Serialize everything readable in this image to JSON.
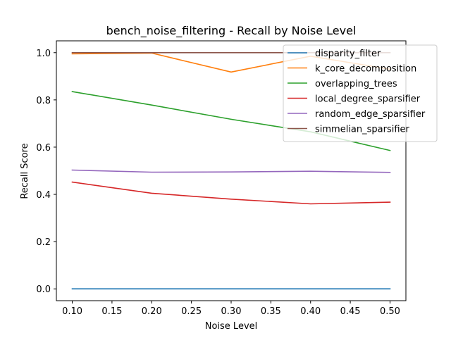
{
  "chart_data": {
    "type": "line",
    "title": "bench_noise_filtering - Recall by Noise Level",
    "xlabel": "Noise Level",
    "ylabel": "Recall Score",
    "x": [
      0.1,
      0.2,
      0.3,
      0.4,
      0.5
    ],
    "xlim": [
      0.08,
      0.52
    ],
    "ylim": [
      -0.05,
      1.05
    ],
    "xticks": [
      0.1,
      0.15,
      0.2,
      0.25,
      0.3,
      0.35,
      0.4,
      0.45,
      0.5
    ],
    "xtick_labels": [
      "0.10",
      "0.15",
      "0.20",
      "0.25",
      "0.30",
      "0.35",
      "0.40",
      "0.45",
      "0.50"
    ],
    "yticks": [
      0.0,
      0.2,
      0.4,
      0.6,
      0.8,
      1.0
    ],
    "ytick_labels": [
      "0.0",
      "0.2",
      "0.4",
      "0.6",
      "0.8",
      "1.0"
    ],
    "grid": false,
    "legend_position": "top-right",
    "series": [
      {
        "name": "disparity_filter",
        "color": "#1f77b4",
        "values": [
          0.0,
          0.0,
          0.0,
          0.0,
          0.0
        ]
      },
      {
        "name": "k_core_decomposition",
        "color": "#ff7f0e",
        "values": [
          0.995,
          0.998,
          0.918,
          0.985,
          0.93
        ]
      },
      {
        "name": "overlapping_trees",
        "color": "#2ca02c",
        "values": [
          0.835,
          0.778,
          0.718,
          0.665,
          0.586
        ]
      },
      {
        "name": "local_degree_sparsifier",
        "color": "#d62728",
        "values": [
          0.452,
          0.405,
          0.38,
          0.36,
          0.367
        ]
      },
      {
        "name": "random_edge_sparsifier",
        "color": "#9467bd",
        "values": [
          0.503,
          0.494,
          0.495,
          0.498,
          0.493
        ]
      },
      {
        "name": "simmelian_sparsifier",
        "color": "#8c564b",
        "values": [
          1.0,
          1.0,
          1.0,
          1.0,
          1.0
        ]
      }
    ]
  }
}
